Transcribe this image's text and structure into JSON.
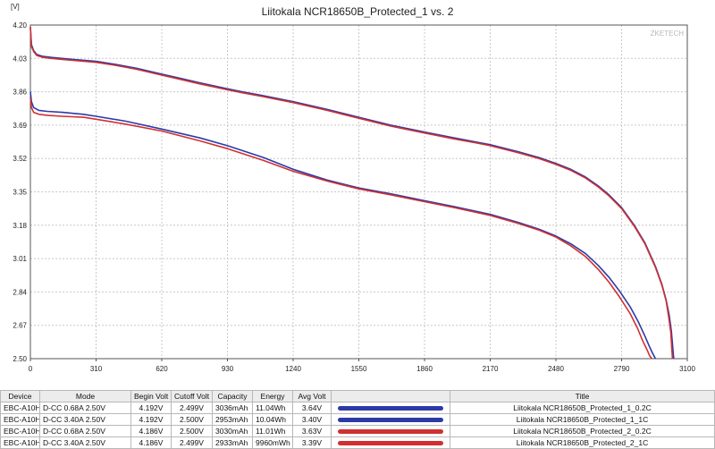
{
  "chart_data": {
    "type": "line",
    "title": "Liitokala NCR18650B_Protected_1 vs. 2",
    "ylabel": "[V]",
    "watermark": "ZKETECH",
    "xlim": [
      0,
      3100
    ],
    "ylim": [
      2.5,
      4.2
    ],
    "xticks": [
      0,
      310,
      620,
      930,
      1240,
      1550,
      1860,
      2170,
      2480,
      2790,
      3100
    ],
    "yticks": [
      "2.50",
      "2.67",
      "2.84",
      "3.01",
      "3.18",
      "3.35",
      "3.52",
      "3.69",
      "3.86",
      "4.03",
      "4.20"
    ],
    "grid": true,
    "series": [
      {
        "name": "Liitokala NCR18650B_Protected_1_0.2C",
        "color": "#2c3aa8",
        "x": [
          0,
          5,
          15,
          30,
          60,
          100,
          150,
          200,
          310,
          400,
          500,
          620,
          700,
          800,
          930,
          1000,
          1100,
          1240,
          1400,
          1550,
          1700,
          1860,
          2000,
          2100,
          2170,
          2300,
          2400,
          2480,
          2550,
          2620,
          2680,
          2730,
          2790,
          2850,
          2900,
          2950,
          2980,
          3000,
          3015,
          3025,
          3036
        ],
        "y": [
          4.19,
          4.1,
          4.07,
          4.05,
          4.04,
          4.035,
          4.03,
          4.025,
          4.015,
          4.0,
          3.98,
          3.95,
          3.93,
          3.905,
          3.875,
          3.86,
          3.84,
          3.81,
          3.77,
          3.73,
          3.69,
          3.655,
          3.625,
          3.605,
          3.59,
          3.555,
          3.525,
          3.495,
          3.465,
          3.425,
          3.38,
          3.335,
          3.27,
          3.18,
          3.09,
          2.97,
          2.88,
          2.8,
          2.72,
          2.64,
          2.5
        ]
      },
      {
        "name": "Liitokala NCR18650B_Protected_1_1C",
        "color": "#2c3aa8",
        "x": [
          0,
          5,
          15,
          40,
          80,
          150,
          250,
          310,
          450,
          620,
          800,
          930,
          1100,
          1240,
          1400,
          1550,
          1700,
          1860,
          2000,
          2170,
          2300,
          2400,
          2480,
          2550,
          2620,
          2680,
          2730,
          2780,
          2830,
          2870,
          2900,
          2920,
          2935,
          2950
        ],
        "y": [
          3.86,
          3.81,
          3.78,
          3.765,
          3.76,
          3.755,
          3.745,
          3.735,
          3.71,
          3.67,
          3.625,
          3.585,
          3.525,
          3.465,
          3.41,
          3.37,
          3.34,
          3.305,
          3.275,
          3.235,
          3.195,
          3.16,
          3.125,
          3.085,
          3.035,
          2.975,
          2.915,
          2.845,
          2.765,
          2.685,
          2.615,
          2.565,
          2.53,
          2.5
        ]
      },
      {
        "name": "Liitokala NCR18650B_Protected_2_0.2C",
        "color": "#d03030",
        "x": [
          0,
          5,
          15,
          30,
          60,
          100,
          150,
          200,
          310,
          400,
          500,
          620,
          700,
          800,
          930,
          1000,
          1100,
          1240,
          1400,
          1550,
          1700,
          1860,
          2000,
          2100,
          2170,
          2300,
          2400,
          2480,
          2550,
          2620,
          2680,
          2730,
          2790,
          2850,
          2900,
          2950,
          2980,
          3000,
          3012,
          3022,
          3030
        ],
        "y": [
          4.19,
          4.09,
          4.065,
          4.045,
          4.035,
          4.03,
          4.025,
          4.02,
          4.01,
          3.995,
          3.975,
          3.945,
          3.925,
          3.9,
          3.87,
          3.855,
          3.835,
          3.805,
          3.765,
          3.725,
          3.685,
          3.65,
          3.62,
          3.6,
          3.585,
          3.55,
          3.52,
          3.49,
          3.46,
          3.42,
          3.375,
          3.33,
          3.265,
          3.175,
          3.085,
          2.965,
          2.875,
          2.795,
          2.715,
          2.635,
          2.5
        ]
      },
      {
        "name": "Liitokala NCR18650B_Protected_2_1C",
        "color": "#d03030",
        "x": [
          0,
          5,
          15,
          40,
          80,
          150,
          250,
          310,
          450,
          620,
          800,
          930,
          1100,
          1240,
          1400,
          1550,
          1700,
          1860,
          2000,
          2170,
          2300,
          2400,
          2480,
          2550,
          2620,
          2680,
          2730,
          2780,
          2830,
          2865,
          2890,
          2910,
          2922,
          2933
        ],
        "y": [
          3.83,
          3.78,
          3.755,
          3.745,
          3.74,
          3.735,
          3.73,
          3.72,
          3.695,
          3.66,
          3.61,
          3.57,
          3.51,
          3.455,
          3.405,
          3.365,
          3.335,
          3.3,
          3.27,
          3.23,
          3.19,
          3.155,
          3.12,
          3.075,
          3.02,
          2.955,
          2.89,
          2.815,
          2.73,
          2.655,
          2.59,
          2.545,
          2.515,
          2.5
        ]
      }
    ]
  },
  "table": {
    "headers": [
      "Device",
      "Mode",
      "Begin Volt",
      "Cutoff Volt",
      "Capacity",
      "Energy",
      "Avg Volt",
      "",
      "Title"
    ],
    "rows": [
      {
        "device": "EBC-A10H",
        "mode": "D-CC 0.68A 2.50V",
        "begin": "4.192V",
        "cutoff": "2.499V",
        "capacity": "3036mAh",
        "energy": "11.04Wh",
        "avg": "3.64V",
        "color": "#2c3aa8",
        "title": "Liitokala NCR18650B_Protected_1_0.2C"
      },
      {
        "device": "EBC-A10H",
        "mode": "D-CC 3.40A 2.50V",
        "begin": "4.192V",
        "cutoff": "2.500V",
        "capacity": "2953mAh",
        "energy": "10.04Wh",
        "avg": "3.40V",
        "color": "#2c3aa8",
        "title": "Liitokala NCR18650B_Protected_1_1C"
      },
      {
        "device": "EBC-A10H",
        "mode": "D-CC 0.68A 2.50V",
        "begin": "4.186V",
        "cutoff": "2.500V",
        "capacity": "3030mAh",
        "energy": "11.01Wh",
        "avg": "3.63V",
        "color": "#d03030",
        "title": "Liitokala NCR18650B_Protected_2_0.2C"
      },
      {
        "device": "EBC-A10H",
        "mode": "D-CC 3.40A 2.50V",
        "begin": "4.186V",
        "cutoff": "2.499V",
        "capacity": "2933mAh",
        "energy": "9960mWh",
        "avg": "3.39V",
        "color": "#d03030",
        "title": "Liitokala NCR18650B_Protected_2_1C"
      }
    ]
  }
}
